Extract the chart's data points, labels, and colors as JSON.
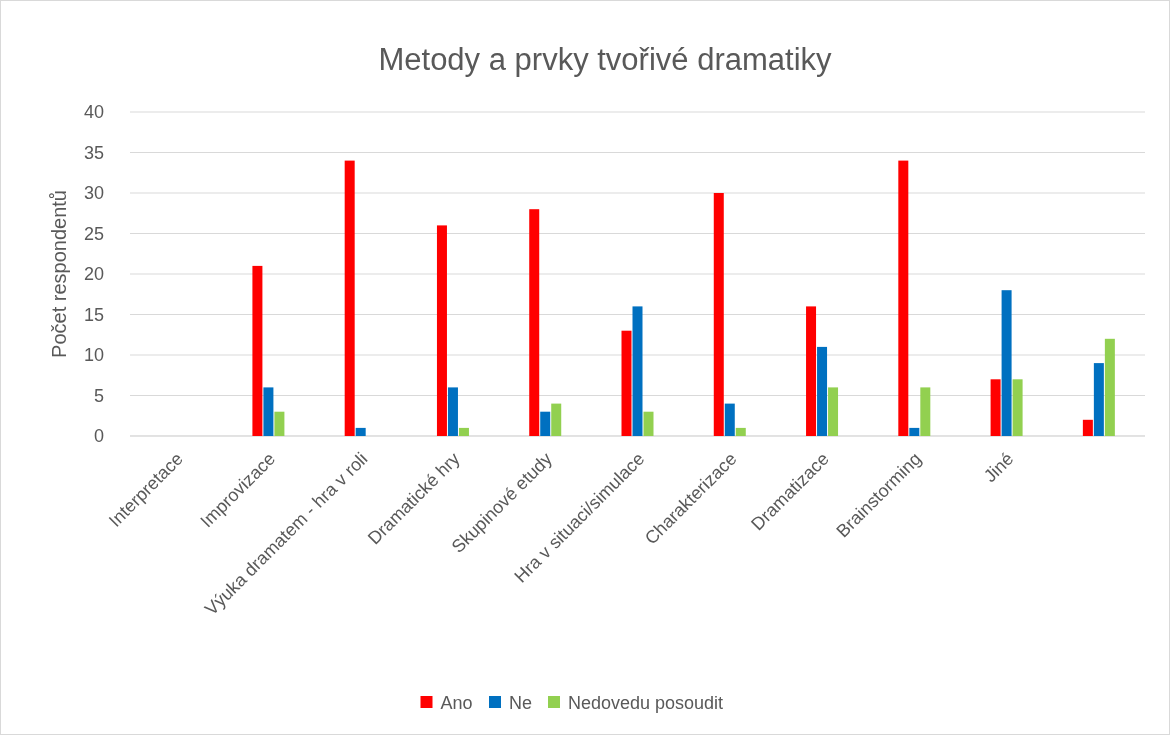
{
  "chart_data": {
    "type": "bar",
    "title": "Metody a prvky tvořivé dramatiky",
    "ylabel": "Počet respondentů",
    "categories": [
      "Interpretace",
      "Improvizace",
      "Výuka dramatem - hra v roli",
      "Dramatické hry",
      "Skupinové etudy",
      "Hra v situaci/simulace",
      "Charakterizace",
      "Dramatizace",
      "Brainstorming",
      "Jiné",
      null
    ],
    "series": [
      {
        "name": "Ano",
        "color": "#ff0000",
        "values": [
          0,
          21,
          34,
          26,
          28,
          13,
          30,
          16,
          34,
          7,
          2
        ]
      },
      {
        "name": "Ne",
        "color": "#0070c0",
        "values": [
          0,
          6,
          1,
          6,
          3,
          16,
          4,
          11,
          1,
          18,
          9
        ]
      },
      {
        "name": "Nedovedu posoudit",
        "color": "#92d050",
        "values": [
          0,
          3,
          0,
          1,
          4,
          3,
          1,
          6,
          6,
          7,
          12
        ]
      }
    ],
    "ylim": [
      0,
      40
    ],
    "yticks": [
      0,
      5,
      10,
      15,
      20,
      25,
      30,
      35,
      40
    ],
    "grid": "y",
    "legend": "bottom"
  }
}
